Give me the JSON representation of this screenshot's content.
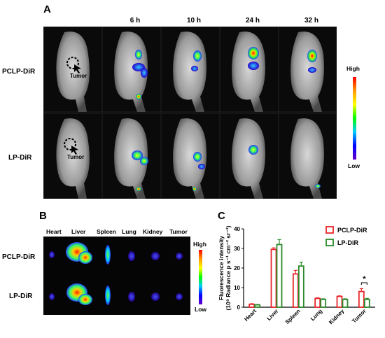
{
  "panel_a": {
    "letter": "A",
    "time_labels": [
      "6 h",
      "10 h",
      "24 h",
      "32 h"
    ],
    "row_labels": [
      "PCLP-DiR",
      "LP-DiR"
    ],
    "tumor_annotation": "Tumor",
    "scale_high": "High",
    "scale_low": "Low"
  },
  "panel_b": {
    "letter": "B",
    "organ_labels": [
      "Heart",
      "Liver",
      "Spleen",
      "Lung",
      "Kidney",
      "Tumor"
    ],
    "row_labels": [
      "PCLP-DiR",
      "LP-DiR"
    ],
    "scale_high": "High",
    "scale_low": "Low"
  },
  "panel_c": {
    "letter": "C",
    "significance": "*"
  },
  "colors": {
    "pclp": "#e8262a",
    "lp": "#2a8a2a"
  },
  "chart_data": {
    "type": "bar",
    "categories": [
      "Heart",
      "Liver",
      "Spleen",
      "Lung",
      "Kidney",
      "Tumor"
    ],
    "series": [
      {
        "name": "PCLP-DiR",
        "values": [
          1.5,
          29.5,
          17.0,
          4.5,
          5.5,
          8.0
        ],
        "errors": [
          0.3,
          0.8,
          1.8,
          0.3,
          0.3,
          1.5
        ]
      },
      {
        "name": "LP-DiR",
        "values": [
          1.2,
          32.0,
          21.0,
          4.0,
          4.0,
          4.0
        ],
        "errors": [
          0.2,
          2.5,
          2.0,
          0.3,
          0.3,
          0.5
        ]
      }
    ],
    "ylabel": "Fluorescence intensity (10⁹ Radiance p s⁻¹ cm⁻² sr⁻¹)",
    "yticks": [
      "0",
      "10",
      "20",
      "30",
      "40"
    ],
    "ylim": [
      0,
      40
    ],
    "legend": "top-right"
  }
}
